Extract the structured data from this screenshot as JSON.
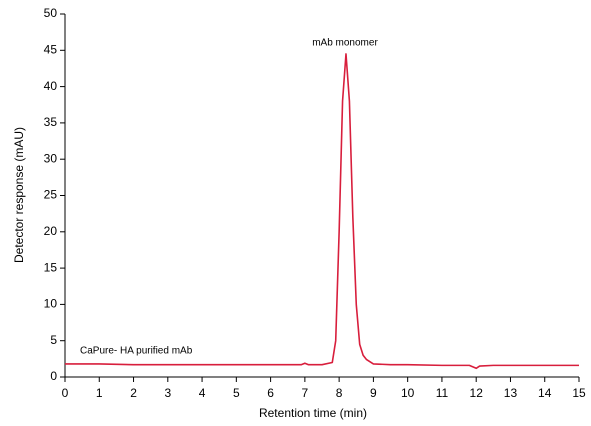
{
  "chart_data": {
    "type": "line",
    "x_label": "Retention time (min)",
    "y_label": "Detector response (mAU)",
    "annotations": [
      "mAb monomer",
      "CaPure- HA purified mAb"
    ],
    "x": [
      0,
      1,
      2,
      3,
      4,
      5,
      6,
      6.9,
      7.0,
      7.1,
      7.5,
      7.8,
      7.9,
      8.0,
      8.1,
      8.2,
      8.3,
      8.4,
      8.5,
      8.6,
      8.7,
      8.8,
      9.0,
      9.5,
      10,
      11,
      11.8,
      12.0,
      12.1,
      12.5,
      13,
      14,
      15
    ],
    "series": [
      {
        "name": "CaPure- HA purified mAb",
        "color": "#d81e3c",
        "values": [
          1.8,
          1.8,
          1.7,
          1.7,
          1.7,
          1.7,
          1.7,
          1.7,
          1.9,
          1.7,
          1.7,
          2.0,
          5,
          20,
          38,
          44.5,
          38,
          22,
          10,
          4.5,
          3.0,
          2.4,
          1.8,
          1.7,
          1.7,
          1.6,
          1.6,
          1.2,
          1.5,
          1.6,
          1.6,
          1.6,
          1.6
        ]
      }
    ],
    "xlim": [
      0,
      15
    ],
    "xticks": [
      0,
      1,
      2,
      3,
      4,
      5,
      6,
      7,
      8,
      9,
      10,
      11,
      12,
      13,
      14,
      15
    ],
    "ylim": [
      0,
      50
    ],
    "yticks": [
      0,
      5,
      10,
      15,
      20,
      25,
      30,
      35,
      40,
      45,
      50
    ],
    "grid": false
  }
}
